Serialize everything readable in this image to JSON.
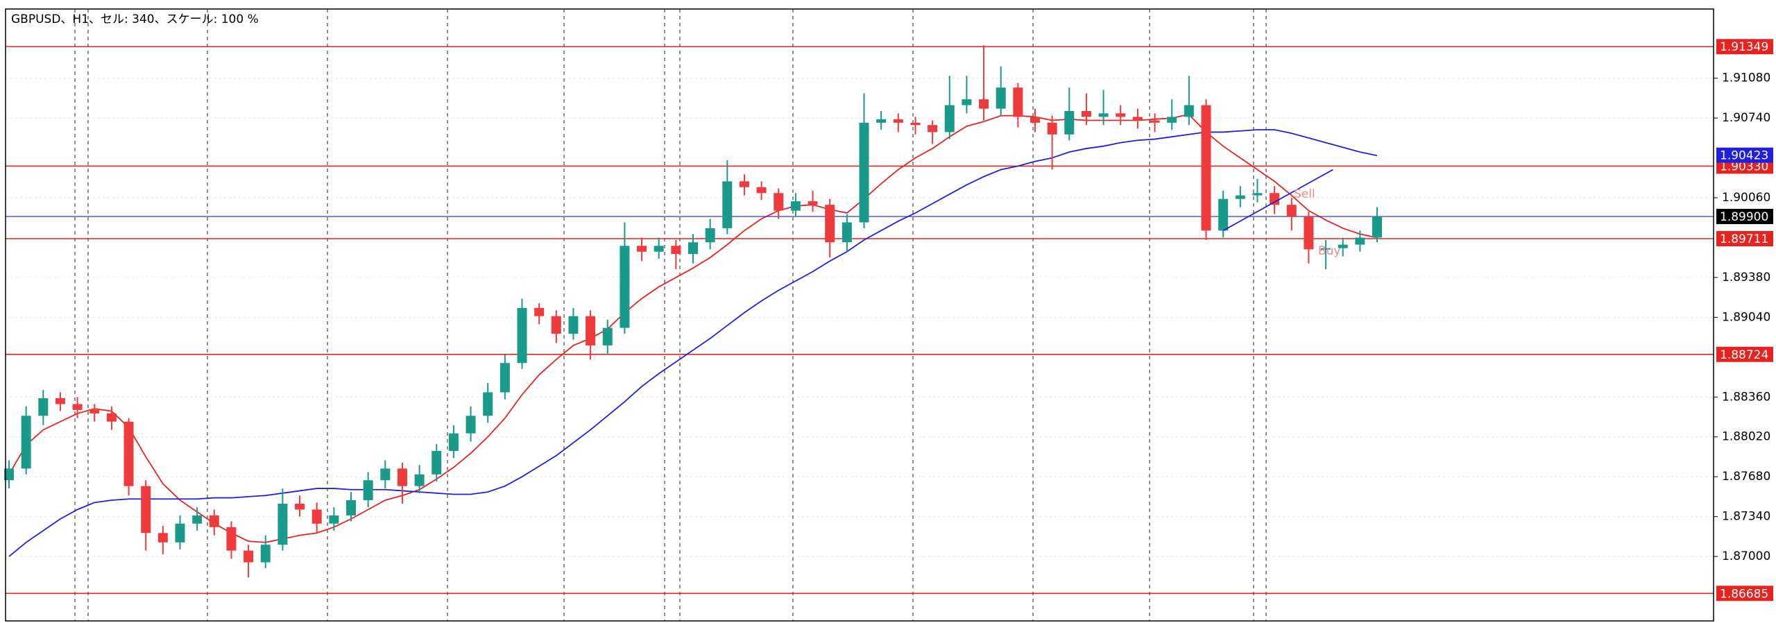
{
  "chart_data": {
    "type": "candlestick",
    "title": "GBPUSD、H1、セル: 340、スケール: 100 %",
    "ylim": [
      1.8645,
      1.9167
    ],
    "yticks": [
      {
        "value": 1.9108,
        "label": "1.91080"
      },
      {
        "value": 1.9074,
        "label": "1.90740"
      },
      {
        "value": 1.9006,
        "label": "1.90060"
      },
      {
        "value": 1.8938,
        "label": "1.89380"
      },
      {
        "value": 1.8904,
        "label": "1.89040"
      },
      {
        "value": 1.8836,
        "label": "1.88360"
      },
      {
        "value": 1.8802,
        "label": "1.88020"
      },
      {
        "value": 1.8768,
        "label": "1.87680"
      },
      {
        "value": 1.8734,
        "label": "1.87340"
      },
      {
        "value": 1.87,
        "label": "1.87000"
      }
    ],
    "grid": true,
    "up_color": "#1a9a8a",
    "down_color": "#ef3b3b",
    "candles": [
      [
        1.8765,
        1.8782,
        1.8758,
        1.8775
      ],
      [
        1.8775,
        1.8828,
        1.877,
        1.882
      ],
      [
        1.882,
        1.8842,
        1.8812,
        1.8835
      ],
      [
        1.8835,
        1.884,
        1.8824,
        1.883
      ],
      [
        1.883,
        1.8836,
        1.8818,
        1.8825
      ],
      [
        1.8825,
        1.883,
        1.8815,
        1.8822
      ],
      [
        1.8822,
        1.8828,
        1.8808,
        1.8815
      ],
      [
        1.8815,
        1.8818,
        1.8752,
        1.876
      ],
      [
        1.876,
        1.8765,
        1.8705,
        1.872
      ],
      [
        1.872,
        1.8726,
        1.8702,
        1.8712
      ],
      [
        1.8712,
        1.8735,
        1.8706,
        1.8728
      ],
      [
        1.8728,
        1.8742,
        1.8722,
        1.8735
      ],
      [
        1.8735,
        1.874,
        1.8718,
        1.8725
      ],
      [
        1.8725,
        1.873,
        1.8698,
        1.8705
      ],
      [
        1.8705,
        1.871,
        1.8682,
        1.8695
      ],
      [
        1.8695,
        1.8718,
        1.869,
        1.871
      ],
      [
        1.871,
        1.8758,
        1.8705,
        1.8745
      ],
      [
        1.8745,
        1.8752,
        1.8734,
        1.874
      ],
      [
        1.874,
        1.8746,
        1.872,
        1.8728
      ],
      [
        1.8728,
        1.8742,
        1.8722,
        1.8735
      ],
      [
        1.8735,
        1.8755,
        1.873,
        1.8748
      ],
      [
        1.8748,
        1.8772,
        1.8742,
        1.8765
      ],
      [
        1.8765,
        1.8782,
        1.8758,
        1.8775
      ],
      [
        1.8775,
        1.878,
        1.8745,
        1.876
      ],
      [
        1.876,
        1.8778,
        1.8754,
        1.877
      ],
      [
        1.877,
        1.8796,
        1.8764,
        1.879
      ],
      [
        1.879,
        1.8812,
        1.8784,
        1.8805
      ],
      [
        1.8805,
        1.8828,
        1.8798,
        1.882
      ],
      [
        1.882,
        1.8848,
        1.8814,
        1.884
      ],
      [
        1.884,
        1.8872,
        1.8834,
        1.8865
      ],
      [
        1.8865,
        1.892,
        1.886,
        1.8912
      ],
      [
        1.8912,
        1.8916,
        1.8898,
        1.8905
      ],
      [
        1.8905,
        1.891,
        1.8882,
        1.889
      ],
      [
        1.889,
        1.8912,
        1.8885,
        1.8905
      ],
      [
        1.8905,
        1.891,
        1.8868,
        1.888
      ],
      [
        1.888,
        1.8902,
        1.8872,
        1.8895
      ],
      [
        1.8895,
        1.8985,
        1.889,
        1.8965
      ],
      [
        1.8965,
        1.8972,
        1.8952,
        1.896
      ],
      [
        1.896,
        1.8972,
        1.8954,
        1.8965
      ],
      [
        1.8965,
        1.897,
        1.8945,
        1.8958
      ],
      [
        1.8958,
        1.8975,
        1.895,
        1.8968
      ],
      [
        1.8968,
        1.8988,
        1.8962,
        1.898
      ],
      [
        1.898,
        1.9038,
        1.8975,
        1.902
      ],
      [
        1.902,
        1.9026,
        1.9008,
        1.9015
      ],
      [
        1.9015,
        1.902,
        1.9004,
        1.901
      ],
      [
        1.901,
        1.9014,
        1.8988,
        1.8995
      ],
      [
        1.8995,
        1.901,
        1.899,
        1.9003
      ],
      [
        1.9003,
        1.9012,
        1.8994,
        1.9
      ],
      [
        1.9,
        1.9005,
        1.8955,
        1.8968
      ],
      [
        1.8968,
        1.8992,
        1.896,
        1.8985
      ],
      [
        1.8985,
        1.9095,
        1.898,
        1.907
      ],
      [
        1.907,
        1.908,
        1.9064,
        1.9073
      ],
      [
        1.9073,
        1.9078,
        1.9062,
        1.907
      ],
      [
        1.907,
        1.9075,
        1.906,
        1.9068
      ],
      [
        1.9068,
        1.9072,
        1.9052,
        1.9062
      ],
      [
        1.9062,
        1.911,
        1.9056,
        1.9085
      ],
      [
        1.9085,
        1.911,
        1.9078,
        1.909
      ],
      [
        1.909,
        1.9136,
        1.9072,
        1.9082
      ],
      [
        1.9082,
        1.9118,
        1.9076,
        1.91
      ],
      [
        1.91,
        1.9104,
        1.9066,
        1.9075
      ],
      [
        1.9075,
        1.9082,
        1.9062,
        1.907
      ],
      [
        1.907,
        1.9076,
        1.903,
        1.906
      ],
      [
        1.906,
        1.91,
        1.9055,
        1.908
      ],
      [
        1.908,
        1.9095,
        1.9068,
        1.9075
      ],
      [
        1.9075,
        1.9098,
        1.9068,
        1.9078
      ],
      [
        1.9078,
        1.9085,
        1.9068,
        1.9075
      ],
      [
        1.9075,
        1.9082,
        1.9065,
        1.9072
      ],
      [
        1.9072,
        1.9078,
        1.9062,
        1.907
      ],
      [
        1.907,
        1.909,
        1.9064,
        1.9075
      ],
      [
        1.9075,
        1.911,
        1.9068,
        1.9085
      ],
      [
        1.9085,
        1.909,
        1.897,
        1.8978
      ],
      [
        1.8978,
        1.9012,
        1.8972,
        1.9005
      ],
      [
        1.9005,
        1.9016,
        1.8998,
        1.9008
      ],
      [
        1.9008,
        1.9022,
        1.9002,
        1.901
      ],
      [
        1.901,
        1.9016,
        1.8992,
        1.9
      ],
      [
        1.9,
        1.9006,
        1.8978,
        1.899
      ],
      [
        1.899,
        1.8994,
        1.895,
        1.8962
      ],
      [
        1.8962,
        1.897,
        1.8945,
        1.8963
      ],
      [
        1.8963,
        1.8972,
        1.8956,
        1.8966
      ],
      [
        1.8966,
        1.8978,
        1.896,
        1.8972
      ],
      [
        1.8972,
        1.8998,
        1.8968,
        1.899
      ]
    ],
    "moving_averages": [
      {
        "color": "#e8231f",
        "values": [
          1.877,
          1.8795,
          1.8808,
          1.8815,
          1.8822,
          1.8826,
          1.8824,
          1.881,
          1.8785,
          1.8762,
          1.8748,
          1.8738,
          1.8728,
          1.872,
          1.8713,
          1.8712,
          1.8715,
          1.8718,
          1.872,
          1.8725,
          1.8732,
          1.874,
          1.8748,
          1.8752,
          1.8757,
          1.8766,
          1.8776,
          1.8788,
          1.8802,
          1.8818,
          1.8838,
          1.8855,
          1.8868,
          1.888,
          1.8886,
          1.8894,
          1.8908,
          1.892,
          1.893,
          1.8938,
          1.8946,
          1.8955,
          1.8966,
          1.8978,
          1.8988,
          1.8995,
          1.8999,
          1.9,
          1.8996,
          1.8993,
          1.9005,
          1.9018,
          1.903,
          1.904,
          1.9048,
          1.9058,
          1.9067,
          1.9071,
          1.9076,
          1.9076,
          1.9075,
          1.9072,
          1.9073,
          1.9072,
          1.9072,
          1.9072,
          1.9072,
          1.9073,
          1.9074,
          1.9077,
          1.9062,
          1.905,
          1.904,
          1.903,
          1.902,
          1.9008,
          1.8995,
          1.8987,
          1.898,
          1.8975,
          1.8972
        ]
      },
      {
        "color": "#1f1fe0",
        "values": [
          1.87,
          1.8712,
          1.8722,
          1.8732,
          1.874,
          1.8746,
          1.8748,
          1.8749,
          1.8749,
          1.8749,
          1.8749,
          1.8749,
          1.875,
          1.875,
          1.8751,
          1.8752,
          1.8754,
          1.8756,
          1.8758,
          1.8758,
          1.8757,
          1.8757,
          1.8757,
          1.8756,
          1.8755,
          1.8754,
          1.8753,
          1.8753,
          1.8755,
          1.876,
          1.8768,
          1.8777,
          1.8786,
          1.8797,
          1.8808,
          1.882,
          1.8832,
          1.8845,
          1.8856,
          1.8866,
          1.8876,
          1.8886,
          1.8897,
          1.8908,
          1.8918,
          1.8927,
          1.8935,
          1.8943,
          1.8952,
          1.896,
          1.897,
          1.8978,
          1.8986,
          1.8993,
          1.9001,
          1.9009,
          1.9017,
          1.9024,
          1.903,
          1.9033,
          1.9037,
          1.904,
          1.9045,
          1.9048,
          1.905,
          1.9053,
          1.9055,
          1.9056,
          1.9058,
          1.906,
          1.9062,
          1.9062,
          1.9063,
          1.9064,
          1.9064,
          1.9061,
          1.9057,
          1.9053,
          1.9049,
          1.9045,
          1.9042
        ]
      }
    ],
    "levels": [
      1.91349,
      {
        "value": 1.9033,
        "label": "1.90330"
      },
      1.89711,
      1.88724,
      1.86685
    ],
    "level_color": "#e8231f",
    "price_line": {
      "value": 1.899,
      "label": "1.89900",
      "color": "#1f1fe0",
      "box_color": "#000000"
    },
    "ma_label": {
      "value": 1.90423,
      "color": "#1f1fe0"
    },
    "trendline": {
      "color": "#1f1fe0",
      "start": [
        71,
        1.8978
      ],
      "end": [
        76,
        1.903
      ]
    },
    "annotations": [
      "Sell",
      "Buy"
    ]
  }
}
